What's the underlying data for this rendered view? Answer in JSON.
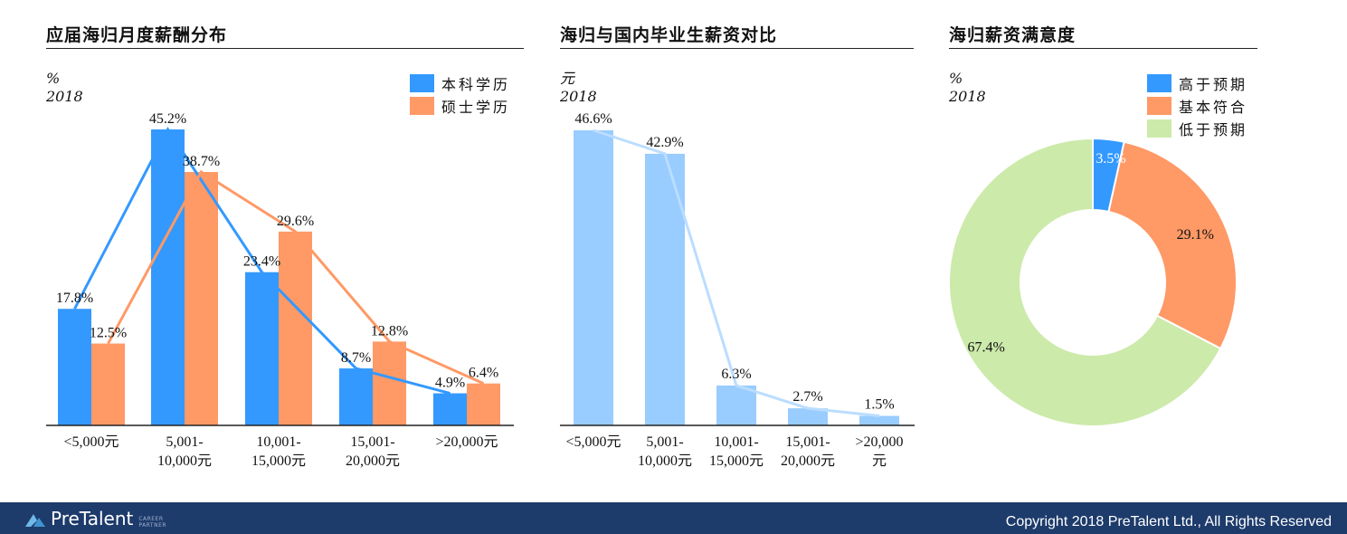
{
  "colors": {
    "bachelor": "#3399ff",
    "master": "#ff9966",
    "bar_light": "#99ccff",
    "line_light": "#bbddff",
    "higher": "#3399ff",
    "meets": "#ff9966",
    "lower": "#cceaaa",
    "footer": "#1d3b6b"
  },
  "charts": {
    "left": {
      "title": "应届海归月度薪酬分布",
      "unit": "%",
      "year": "2018"
    },
    "middle": {
      "title": "海归与国内毕业生薪资对比",
      "unit": "元",
      "year": "2018"
    },
    "right": {
      "title": "海归薪资满意度",
      "unit": "%",
      "year": "2018"
    }
  },
  "chart_data": [
    {
      "type": "bar",
      "title": "应届海归月度薪酬分布",
      "categories": [
        "<5,000元",
        "5,001-10,000元",
        "10,001-15,000元",
        "15,001-20,000元",
        ">20,000元"
      ],
      "category_lines": [
        [
          "<5,000元"
        ],
        [
          "5,001-",
          "10,000元"
        ],
        [
          "10,001-",
          "15,000元"
        ],
        [
          "15,001-",
          "20,000元"
        ],
        [
          ">20,000元"
        ]
      ],
      "series": [
        {
          "name": "本科学历",
          "values": [
            17.8,
            45.2,
            23.4,
            8.7,
            4.9
          ],
          "labels": [
            "17.8%",
            "45.2%",
            "23.4%",
            "8.7%",
            "4.9%"
          ]
        },
        {
          "name": "硕士学历",
          "values": [
            12.5,
            38.7,
            29.6,
            12.8,
            6.4
          ],
          "labels": [
            "12.5%",
            "38.7%",
            "29.6%",
            "12.8%",
            "6.4%"
          ]
        }
      ],
      "overlay": "line connecting bar tops per series",
      "legend": "top-right",
      "ylim": [
        0,
        45.2
      ]
    },
    {
      "type": "bar",
      "title": "海归与国内毕业生薪资对比",
      "categories": [
        "<5,000元",
        "5,001-10,000元",
        "10,001-15,000元",
        "15,001-20,000元",
        ">20,000元"
      ],
      "category_lines": [
        [
          "<5,000元"
        ],
        [
          "5,001-",
          "10,000元"
        ],
        [
          "10,001-",
          "15,000元"
        ],
        [
          "15,001-",
          "20,000元"
        ],
        [
          ">20,000",
          "元"
        ]
      ],
      "values": [
        46.6,
        42.9,
        6.3,
        2.7,
        1.5
      ],
      "labels": [
        "46.6%",
        "42.9%",
        "6.3%",
        "2.7%",
        "1.5%"
      ],
      "overlay": "line connecting bar tops",
      "ylim": [
        0,
        46.6
      ]
    },
    {
      "type": "pie",
      "style": "donut",
      "title": "海归薪资满意度",
      "slices": [
        {
          "name": "高于预期",
          "value": 3.5,
          "label": "3.5%"
        },
        {
          "name": "基本符合",
          "value": 29.1,
          "label": "29.1%"
        },
        {
          "name": "低于预期",
          "value": 67.4,
          "label": "67.4%"
        }
      ],
      "legend": "top-right"
    }
  ],
  "footer": {
    "logo": "PreTalent",
    "logo_sub_1": "CAREER",
    "logo_sub_2": "PARTNER",
    "copyright": "Copyright 2018 PreTalent Ltd., All Rights Reserved"
  }
}
